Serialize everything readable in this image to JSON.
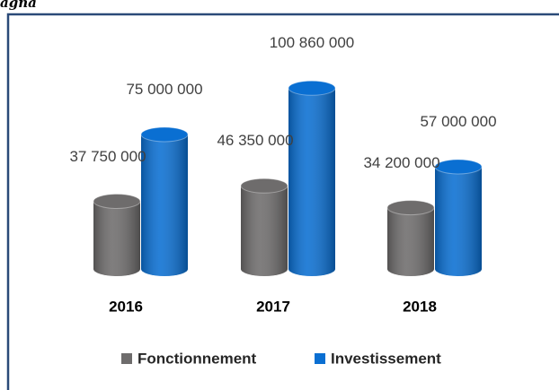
{
  "chart_data": {
    "type": "bar3d-cylinder",
    "title": "agna",
    "categories": [
      "2016",
      "2017",
      "2018"
    ],
    "series": [
      {
        "name": "Fonctionnement",
        "color": "#6e6c6c",
        "values": [
          37750000,
          46350000,
          34200000
        ],
        "value_labels": [
          "37 750 000",
          "46 350 000",
          "34 200 000"
        ]
      },
      {
        "name": "Investissement",
        "color": "#0a6fd2",
        "values": [
          75000000,
          100860000,
          57000000
        ],
        "value_labels": [
          "75 000 000",
          "100 860 000",
          "57 000 000"
        ]
      }
    ],
    "legend": "bottom"
  }
}
